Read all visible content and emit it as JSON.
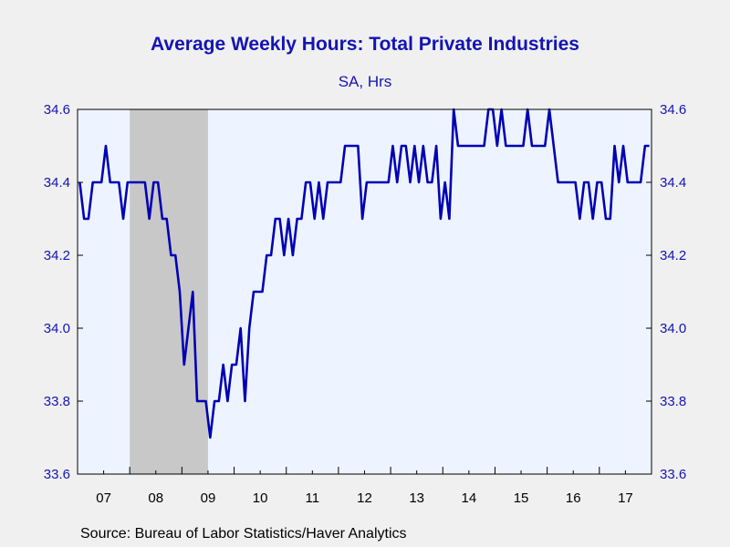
{
  "chart_data": {
    "type": "line",
    "title": "Average Weekly Hours: Total Private Industries",
    "subtitle": "SA, Hrs",
    "source": "Source:  Bureau of Labor Statistics/Haver Analytics",
    "x_start": "2007-01",
    "x_end": "2017-12",
    "ylim": [
      33.6,
      34.6
    ],
    "y_ticks": [
      "34.6",
      "34.4",
      "34.2",
      "34.0",
      "33.8",
      "33.6"
    ],
    "x_tick_labels": [
      "07",
      "08",
      "09",
      "10",
      "11",
      "12",
      "13",
      "14",
      "15",
      "16",
      "17"
    ],
    "recession": {
      "start": "2008-01",
      "end": "2009-06",
      "color": "#c8c8c8"
    },
    "grid": false,
    "colors": {
      "line": "#0000b4",
      "plot_bg": "#eef4ff",
      "text": "#1414b4"
    },
    "series": [
      {
        "values": [
          34.4,
          34.3,
          34.3,
          34.4,
          34.4,
          34.4,
          34.5,
          34.4,
          34.4,
          34.4,
          34.3,
          34.4,
          34.4,
          34.4,
          34.4,
          34.4,
          34.3,
          34.4,
          34.4,
          34.3,
          34.3,
          34.2,
          34.2,
          34.1,
          33.9,
          34.0,
          34.1,
          33.8,
          33.8,
          33.8,
          33.7,
          33.8,
          33.8,
          33.9,
          33.8,
          33.9,
          33.9,
          34.0,
          33.8,
          34.0,
          34.1,
          34.1,
          34.1,
          34.2,
          34.2,
          34.3,
          34.3,
          34.2,
          34.3,
          34.2,
          34.3,
          34.3,
          34.4,
          34.4,
          34.3,
          34.4,
          34.3,
          34.4,
          34.4,
          34.4,
          34.4,
          34.5,
          34.5,
          34.5,
          34.5,
          34.3,
          34.4,
          34.4,
          34.4,
          34.4,
          34.4,
          34.4,
          34.5,
          34.4,
          34.5,
          34.5,
          34.4,
          34.5,
          34.4,
          34.5,
          34.4,
          34.4,
          34.5,
          34.3,
          34.4,
          34.3,
          34.6,
          34.5,
          34.5,
          34.5,
          34.5,
          34.5,
          34.5,
          34.5,
          34.6,
          34.6,
          34.5,
          34.6,
          34.5,
          34.5,
          34.5,
          34.5,
          34.5,
          34.6,
          34.5,
          34.5,
          34.5,
          34.5,
          34.6,
          34.5,
          34.4,
          34.4,
          34.4,
          34.4,
          34.4,
          34.3,
          34.4,
          34.4,
          34.3,
          34.4,
          34.4,
          34.3,
          34.3,
          34.5,
          34.4,
          34.5,
          34.4,
          34.4,
          34.4,
          34.4,
          34.5,
          34.5
        ]
      }
    ]
  }
}
